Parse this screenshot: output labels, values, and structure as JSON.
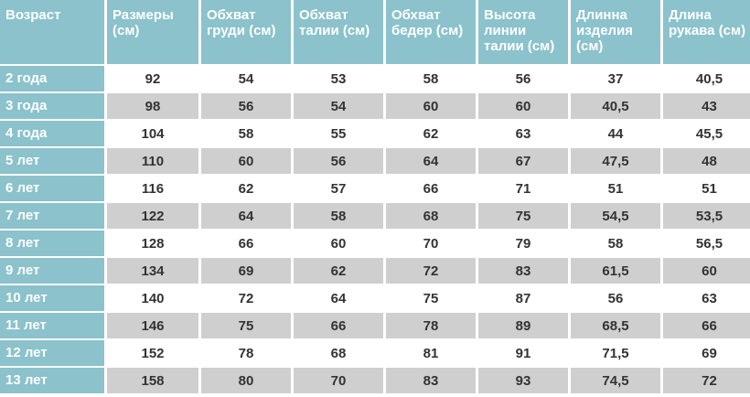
{
  "table": {
    "headers": [
      "Возраст",
      "Размеры\n(см)",
      "Обхват\nгруди (см)",
      "Обхват\nталии (см)",
      "Обхват\nбедер (см)",
      "Высота\nлинии\nталии (см)",
      "Длинна\nизделия\n(см)",
      "Длина\nрукава (см)"
    ],
    "rows": [
      {
        "age": "2 года",
        "values": [
          "92",
          "54",
          "53",
          "58",
          "56",
          "37",
          "40,5"
        ]
      },
      {
        "age": "3 года",
        "values": [
          "98",
          "56",
          "54",
          "60",
          "60",
          "40,5",
          "43"
        ]
      },
      {
        "age": "4 года",
        "values": [
          "104",
          "58",
          "55",
          "62",
          "63",
          "44",
          "45,5"
        ]
      },
      {
        "age": "5 лет",
        "values": [
          "110",
          "60",
          "56",
          "64",
          "67",
          "47,5",
          "48"
        ]
      },
      {
        "age": "6 лет",
        "values": [
          "116",
          "62",
          "57",
          "66",
          "71",
          "51",
          "51"
        ]
      },
      {
        "age": "7 лет",
        "values": [
          "122",
          "64",
          "58",
          "68",
          "75",
          "54,5",
          "53,5"
        ]
      },
      {
        "age": "8 лет",
        "values": [
          "128",
          "66",
          "60",
          "70",
          "79",
          "58",
          "56,5"
        ]
      },
      {
        "age": "9 лет",
        "values": [
          "134",
          "69",
          "62",
          "72",
          "83",
          "61,5",
          "60"
        ]
      },
      {
        "age": "10 лет",
        "values": [
          "140",
          "72",
          "64",
          "75",
          "87",
          "56",
          "63"
        ]
      },
      {
        "age": "11 лет",
        "values": [
          "146",
          "75",
          "66",
          "78",
          "89",
          "68,5",
          "66"
        ]
      },
      {
        "age": "12 лет",
        "values": [
          "152",
          "78",
          "68",
          "81",
          "91",
          "71,5",
          "69"
        ]
      },
      {
        "age": "13 лет",
        "values": [
          "158",
          "80",
          "70",
          "83",
          "93",
          "74,5",
          "72"
        ]
      }
    ]
  },
  "colors": {
    "header_bg": "#8bc2cc",
    "row_white": "#ffffff",
    "row_gray": "#cfcfcf",
    "text": "#333333"
  }
}
